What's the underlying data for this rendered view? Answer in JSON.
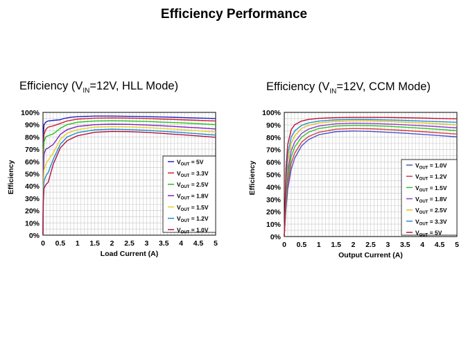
{
  "page_title": "Efficiency Performance",
  "captions": [
    {
      "prefix": "Efficiency (V",
      "sub": "IN",
      "suffix": "=12V, HLL Mode)"
    },
    {
      "prefix": "Efficiency (V",
      "sub": "IN",
      "suffix": "=12V, CCM Mode)"
    }
  ],
  "chart_data": [
    {
      "type": "line",
      "title": "Efficiency (VIN=12V, HLL Mode)",
      "xlabel": "Load Current (A)",
      "ylabel": "Efficiency",
      "xlim": [
        0,
        5
      ],
      "ylim": [
        0,
        100
      ],
      "x_ticks": [
        "0",
        "0.5",
        "1",
        "1.5",
        "2",
        "2.5",
        "3",
        "3.5",
        "4",
        "4.5",
        "5"
      ],
      "y_ticks": [
        "0%",
        "10%",
        "20%",
        "30%",
        "40%",
        "50%",
        "60%",
        "70%",
        "80%",
        "90%",
        "100%"
      ],
      "legend_position": "lower-right",
      "series": [
        {
          "name": "VOUT = 5V",
          "legend_main": "V",
          "legend_sub": "OUT",
          "legend_tail": " = 5V",
          "color": "#2020c8",
          "points": [
            [
              0,
              0
            ],
            [
              0.01,
              80
            ],
            [
              0.03,
              90
            ],
            [
              0.08,
              92
            ],
            [
              0.15,
              93
            ],
            [
              0.3,
              93.5
            ],
            [
              0.5,
              94
            ],
            [
              0.6,
              95
            ],
            [
              0.8,
              96
            ],
            [
              1,
              96.5
            ],
            [
              1.5,
              97
            ],
            [
              2,
              97
            ],
            [
              2.5,
              96.8
            ],
            [
              3,
              96.5
            ],
            [
              3.5,
              96.2
            ],
            [
              4,
              95.8
            ],
            [
              4.5,
              95.4
            ],
            [
              5,
              95
            ]
          ]
        },
        {
          "name": "VOUT = 3.3V",
          "legend_main": "V",
          "legend_sub": "OUT",
          "legend_tail": " = 3.3V",
          "color": "#d0202c",
          "points": [
            [
              0,
              0
            ],
            [
              0.01,
              70
            ],
            [
              0.03,
              82
            ],
            [
              0.08,
              86
            ],
            [
              0.15,
              88
            ],
            [
              0.3,
              89
            ],
            [
              0.5,
              91
            ],
            [
              0.7,
              93
            ],
            [
              1,
              94.5
            ],
            [
              1.5,
              95.3
            ],
            [
              2,
              95.5
            ],
            [
              2.5,
              95.3
            ],
            [
              3,
              95
            ],
            [
              3.5,
              94.5
            ],
            [
              4,
              94
            ],
            [
              4.5,
              93.5
            ],
            [
              5,
              93
            ]
          ]
        },
        {
          "name": "VOUT = 2.5V",
          "legend_main": "V",
          "legend_sub": "OUT",
          "legend_tail": " = 2.5V",
          "color": "#20c020",
          "points": [
            [
              0,
              0
            ],
            [
              0.01,
              60
            ],
            [
              0.03,
              76
            ],
            [
              0.08,
              80
            ],
            [
              0.15,
              81
            ],
            [
              0.3,
              82.5
            ],
            [
              0.5,
              87
            ],
            [
              0.7,
              90
            ],
            [
              1,
              92
            ],
            [
              1.5,
              93
            ],
            [
              2,
              93.2
            ],
            [
              2.5,
              93
            ],
            [
              3,
              92.6
            ],
            [
              3.5,
              92
            ],
            [
              4,
              91.5
            ],
            [
              4.5,
              90.8
            ],
            [
              5,
              90
            ]
          ]
        },
        {
          "name": "VOUT = 1.8V",
          "legend_main": "V",
          "legend_sub": "OUT",
          "legend_tail": " = 1.8V",
          "color": "#8020c0",
          "points": [
            [
              0,
              0
            ],
            [
              0.01,
              50
            ],
            [
              0.03,
              66
            ],
            [
              0.08,
              70
            ],
            [
              0.15,
              71
            ],
            [
              0.3,
              74
            ],
            [
              0.5,
              82
            ],
            [
              0.7,
              86
            ],
            [
              1,
              88.5
            ],
            [
              1.5,
              90
            ],
            [
              2,
              90.4
            ],
            [
              2.5,
              90.2
            ],
            [
              3,
              89.7
            ],
            [
              3.5,
              89
            ],
            [
              4,
              88.2
            ],
            [
              4.5,
              87.4
            ],
            [
              5,
              86.5
            ]
          ]
        },
        {
          "name": "VOUT = 1.5V",
          "legend_main": "V",
          "legend_sub": "OUT",
          "legend_tail": " = 1.5V",
          "color": "#e8d020",
          "points": [
            [
              0,
              0
            ],
            [
              0.01,
              40
            ],
            [
              0.03,
              53
            ],
            [
              0.08,
              58
            ],
            [
              0.15,
              61
            ],
            [
              0.3,
              67
            ],
            [
              0.5,
              78
            ],
            [
              0.7,
              83
            ],
            [
              1,
              86
            ],
            [
              1.5,
              88
            ],
            [
              2,
              88.4
            ],
            [
              2.5,
              88.2
            ],
            [
              3,
              87.6
            ],
            [
              3.5,
              86.8
            ],
            [
              4,
              86
            ],
            [
              4.5,
              85
            ],
            [
              5,
              84
            ]
          ]
        },
        {
          "name": "VOUT = 1.2V",
          "legend_main": "V",
          "legend_sub": "OUT",
          "legend_tail": " = 1.2V",
          "color": "#1c8cd0",
          "points": [
            [
              0,
              0
            ],
            [
              0.01,
              32
            ],
            [
              0.03,
              44
            ],
            [
              0.08,
              48
            ],
            [
              0.15,
              51
            ],
            [
              0.3,
              62
            ],
            [
              0.5,
              74
            ],
            [
              0.7,
              80
            ],
            [
              1,
              83.5
            ],
            [
              1.5,
              85.8
            ],
            [
              2,
              86.3
            ],
            [
              2.5,
              86
            ],
            [
              3,
              85.4
            ],
            [
              3.5,
              84.5
            ],
            [
              4,
              83.6
            ],
            [
              4.5,
              82.6
            ],
            [
              5,
              81.5
            ]
          ]
        },
        {
          "name": "VOUT = 1.0V",
          "legend_main": "V",
          "legend_sub": "OUT",
          "legend_tail": " = 1.0V",
          "color": "#b01040",
          "points": [
            [
              0,
              0
            ],
            [
              0.01,
              27
            ],
            [
              0.03,
              38
            ],
            [
              0.08,
              41
            ],
            [
              0.15,
              43
            ],
            [
              0.3,
              58
            ],
            [
              0.5,
              71
            ],
            [
              0.7,
              77
            ],
            [
              1,
              81
            ],
            [
              1.5,
              83.8
            ],
            [
              2,
              84.5
            ],
            [
              2.5,
              84.3
            ],
            [
              3,
              83.7
            ],
            [
              3.5,
              82.8
            ],
            [
              4,
              81.8
            ],
            [
              4.5,
              80.8
            ],
            [
              5,
              79.7
            ]
          ]
        }
      ]
    },
    {
      "type": "line",
      "title": "Efficiency (VIN=12V, CCM Mode)",
      "xlabel": "Output Current (A)",
      "ylabel": "Efficiency",
      "xlim": [
        0,
        5
      ],
      "ylim": [
        0,
        100
      ],
      "x_ticks": [
        "0",
        "0.5",
        "1",
        "1.5",
        "2",
        "2.5",
        "3",
        "3.5",
        "4",
        "4.5",
        "5"
      ],
      "y_ticks": [
        "0%",
        "10%",
        "20%",
        "30%",
        "40%",
        "50%",
        "60%",
        "70%",
        "80%",
        "90%",
        "100%"
      ],
      "legend_position": "lower-right",
      "series": [
        {
          "name": "VOUT = 1.0V",
          "legend_main": "V",
          "legend_sub": "OUT",
          "legend_tail": " = 1.0V",
          "color": "#5050c8",
          "points": [
            [
              0,
              0
            ],
            [
              0.05,
              22
            ],
            [
              0.1,
              38
            ],
            [
              0.2,
              54
            ],
            [
              0.3,
              63
            ],
            [
              0.5,
              73
            ],
            [
              0.7,
              78
            ],
            [
              1,
              82
            ],
            [
              1.5,
              84.5
            ],
            [
              2,
              85
            ],
            [
              2.5,
              84.7
            ],
            [
              3,
              84
            ],
            [
              3.5,
              83.2
            ],
            [
              4,
              82.3
            ],
            [
              4.5,
              81.3
            ],
            [
              5,
              80.3
            ]
          ]
        },
        {
          "name": "VOUT = 1.2V",
          "legend_main": "V",
          "legend_sub": "OUT",
          "legend_tail": " = 1.2V",
          "color": "#d04040",
          "points": [
            [
              0,
              0
            ],
            [
              0.05,
              26
            ],
            [
              0.1,
              43
            ],
            [
              0.2,
              59
            ],
            [
              0.3,
              67
            ],
            [
              0.5,
              76
            ],
            [
              0.7,
              80.5
            ],
            [
              1,
              84
            ],
            [
              1.5,
              86.5
            ],
            [
              2,
              87
            ],
            [
              2.5,
              86.8
            ],
            [
              3,
              86.2
            ],
            [
              3.5,
              85.4
            ],
            [
              4,
              84.5
            ],
            [
              4.5,
              83.5
            ],
            [
              5,
              82.5
            ]
          ]
        },
        {
          "name": "VOUT = 1.5V",
          "legend_main": "V",
          "legend_sub": "OUT",
          "legend_tail": " = 1.5V",
          "color": "#30c030",
          "points": [
            [
              0,
              0
            ],
            [
              0.05,
              30
            ],
            [
              0.1,
              48
            ],
            [
              0.2,
              64
            ],
            [
              0.3,
              72
            ],
            [
              0.5,
              80
            ],
            [
              0.7,
              84
            ],
            [
              1,
              87
            ],
            [
              1.5,
              89
            ],
            [
              2,
              89.5
            ],
            [
              2.5,
              89.3
            ],
            [
              3,
              88.8
            ],
            [
              3.5,
              88
            ],
            [
              4,
              87.2
            ],
            [
              4.5,
              86.3
            ],
            [
              5,
              85.3
            ]
          ]
        },
        {
          "name": "VOUT = 1.8V",
          "legend_main": "V",
          "legend_sub": "OUT",
          "legend_tail": " = 1.8V",
          "color": "#9040c0",
          "points": [
            [
              0,
              0
            ],
            [
              0.05,
              34
            ],
            [
              0.1,
              53
            ],
            [
              0.2,
              69
            ],
            [
              0.3,
              76
            ],
            [
              0.5,
              83
            ],
            [
              0.7,
              86.5
            ],
            [
              1,
              89
            ],
            [
              1.5,
              90.8
            ],
            [
              2,
              91.3
            ],
            [
              2.5,
              91.1
            ],
            [
              3,
              90.6
            ],
            [
              3.5,
              90
            ],
            [
              4,
              89.2
            ],
            [
              4.5,
              88.4
            ],
            [
              5,
              87.5
            ]
          ]
        },
        {
          "name": "VOUT = 2.5V",
          "legend_main": "V",
          "legend_sub": "OUT",
          "legend_tail": " = 2.5V",
          "color": "#e0c020",
          "points": [
            [
              0,
              0
            ],
            [
              0.05,
              40
            ],
            [
              0.1,
              60
            ],
            [
              0.2,
              75
            ],
            [
              0.3,
              81
            ],
            [
              0.5,
              87
            ],
            [
              0.7,
              89.5
            ],
            [
              1,
              91.5
            ],
            [
              1.5,
              92.8
            ],
            [
              2,
              93.2
            ],
            [
              2.5,
              93.1
            ],
            [
              3,
              92.7
            ],
            [
              3.5,
              92.1
            ],
            [
              4,
              91.5
            ],
            [
              4.5,
              90.8
            ],
            [
              5,
              90
            ]
          ]
        },
        {
          "name": "VOUT = 3.3V",
          "legend_main": "V",
          "legend_sub": "OUT",
          "legend_tail": " = 3.3V",
          "color": "#2090d0",
          "points": [
            [
              0,
              0
            ],
            [
              0.05,
              46
            ],
            [
              0.1,
              66
            ],
            [
              0.2,
              80
            ],
            [
              0.3,
              85
            ],
            [
              0.5,
              89.5
            ],
            [
              0.7,
              91.5
            ],
            [
              1,
              93
            ],
            [
              1.5,
              94
            ],
            [
              2,
              94.3
            ],
            [
              2.5,
              94.2
            ],
            [
              3,
              93.9
            ],
            [
              3.5,
              93.5
            ],
            [
              4,
              93
            ],
            [
              4.5,
              92.5
            ],
            [
              5,
              92
            ]
          ]
        },
        {
          "name": "VOUT = 5V",
          "legend_main": "V",
          "legend_sub": "OUT",
          "legend_tail": " = 5V",
          "color": "#c01030",
          "points": [
            [
              0,
              0
            ],
            [
              0.05,
              55
            ],
            [
              0.1,
              74
            ],
            [
              0.2,
              86
            ],
            [
              0.3,
              90
            ],
            [
              0.5,
              93
            ],
            [
              0.7,
              94.3
            ],
            [
              1,
              95.2
            ],
            [
              1.5,
              95.8
            ],
            [
              2,
              96
            ],
            [
              2.5,
              96
            ],
            [
              3,
              95.9
            ],
            [
              3.5,
              95.7
            ],
            [
              4,
              95.4
            ],
            [
              4.5,
              95.1
            ],
            [
              5,
              94.8
            ]
          ]
        }
      ]
    }
  ]
}
